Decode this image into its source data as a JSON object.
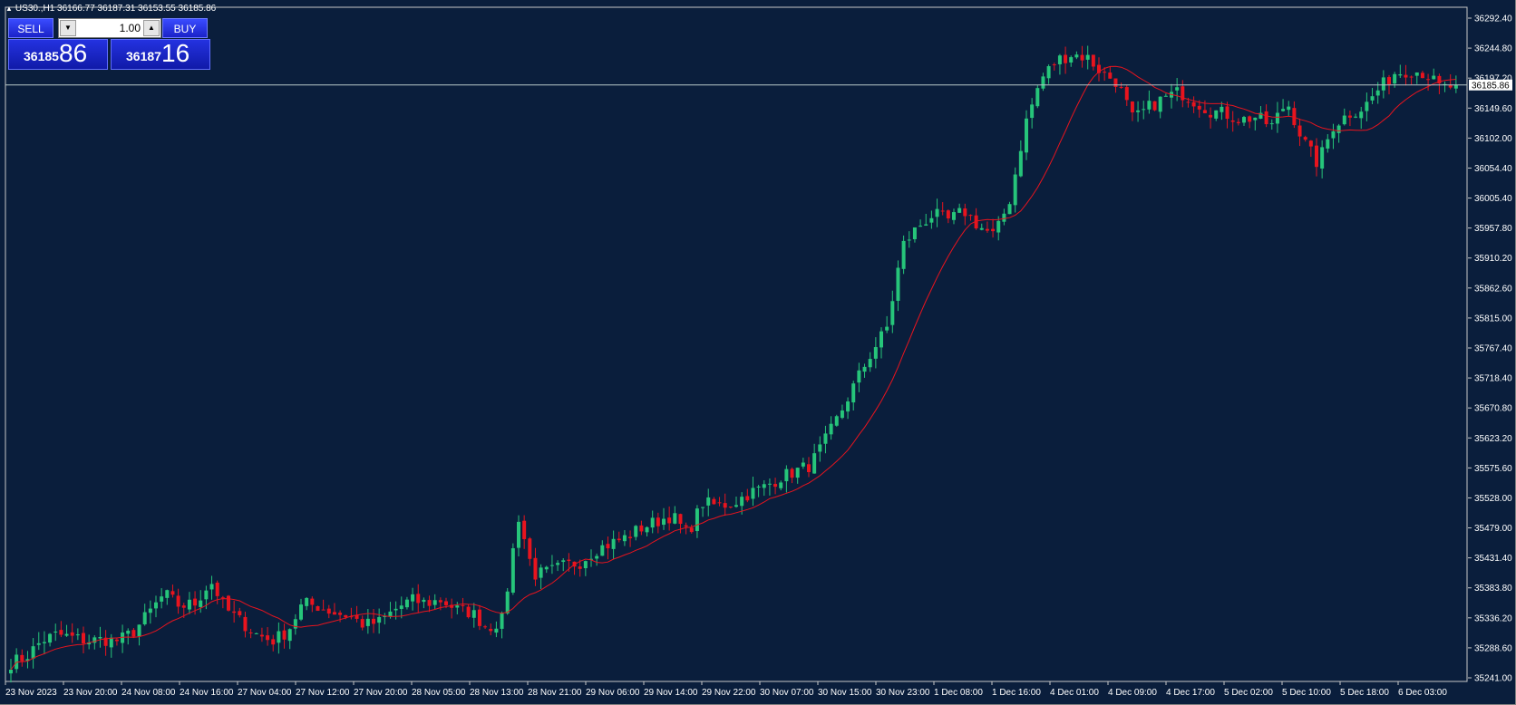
{
  "header": {
    "text": "US30.,H1  36166.77 36187.31 36153.55 36185.86"
  },
  "trade_panel": {
    "sell_label": "SELL",
    "buy_label": "BUY",
    "lot_value": "1.00",
    "sell_price_small": "36185",
    "sell_price_big": "86",
    "buy_price_small": "36187",
    "buy_price_big": "16"
  },
  "chart_data": {
    "type": "candlestick",
    "symbol": "US30.",
    "timeframe": "H1",
    "current_price": 36185.86,
    "current_price_label": "36185.86",
    "price_axis_labels": [
      "36292.40",
      "36244.80",
      "36197.20",
      "36149.60",
      "36102.00",
      "36054.40",
      "36005.40",
      "35957.80",
      "35910.20",
      "35862.60",
      "35815.00",
      "35767.40",
      "35718.40",
      "35670.80",
      "35623.20",
      "35575.60",
      "35528.00",
      "35479.00",
      "35431.40",
      "35383.80",
      "35336.20",
      "35288.60",
      "35241.00"
    ],
    "ylim": [
      35241.0,
      36292.4
    ],
    "time_axis_labels": [
      "23 Nov 2023",
      "23 Nov 20:00",
      "24 Nov 08:00",
      "24 Nov 16:00",
      "27 Nov 04:00",
      "27 Nov 12:00",
      "27 Nov 20:00",
      "28 Nov 05:00",
      "28 Nov 13:00",
      "28 Nov 21:00",
      "29 Nov 06:00",
      "29 Nov 14:00",
      "29 Nov 22:00",
      "30 Nov 07:00",
      "30 Nov 15:00",
      "30 Nov 23:00",
      "1 Dec 08:00",
      "1 Dec 16:00",
      "4 Dec 01:00",
      "4 Dec 09:00",
      "4 Dec 17:00",
      "5 Dec 02:00",
      "5 Dec 10:00",
      "5 Dec 18:00",
      "6 Dec 03:00"
    ],
    "close_path": [
      35265,
      35275,
      35300,
      35310,
      35305,
      35300,
      35302,
      35300,
      35315,
      35345,
      35375,
      35355,
      35360,
      35395,
      35350,
      35330,
      35310,
      35300,
      35315,
      35360,
      35355,
      35345,
      35340,
      35325,
      35330,
      35350,
      35365,
      35360,
      35365,
      35350,
      35345,
      35320,
      35335,
      35500,
      35405,
      35410,
      35420,
      35425,
      35445,
      35455,
      35465,
      35480,
      35490,
      35500,
      35470,
      35520,
      35515,
      35520,
      35535,
      35545,
      35560,
      35570,
      35580,
      35620,
      35665,
      35715,
      35760,
      35800,
      35930,
      35960,
      35980,
      35970,
      35985,
      35960,
      35945,
      36005,
      36125,
      36195,
      36225,
      36235,
      36230,
      36205,
      36190,
      36130,
      36150,
      36165,
      36175,
      36160,
      36145,
      36140,
      36130,
      36135,
      36120,
      36160,
      36100,
      36060,
      36120,
      36140,
      36150,
      36180,
      36205,
      36210,
      36205,
      36180,
      36185
    ],
    "moving_average_color": "#e8141e",
    "bull_color": "#26c57a",
    "bear_color": "#e8141e",
    "grid": false
  }
}
